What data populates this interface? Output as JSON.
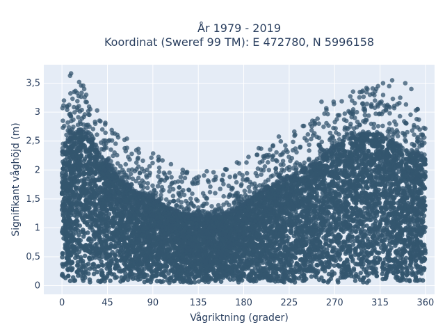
{
  "chart_data": {
    "type": "scatter",
    "title_line1": "År 1979 - 2019",
    "title_line2": "Koordinat (Sweref 99 TM): E 472780, N 5996158",
    "xlabel": "Vågriktning (grader)",
    "ylabel": "Signifikant våghöjd (m)",
    "xlim": [
      -18,
      369
    ],
    "ylim": [
      -0.15,
      3.82
    ],
    "x_ticks": [
      0,
      45,
      90,
      135,
      180,
      225,
      270,
      315,
      360
    ],
    "x_tick_labels": [
      "0",
      "45",
      "90",
      "135",
      "180",
      "225",
      "270",
      "315",
      "360"
    ],
    "y_ticks": [
      0,
      0.5,
      1,
      1.5,
      2,
      2.5,
      3,
      3.5
    ],
    "y_tick_labels": [
      "0",
      "0,5",
      "1",
      "1,5",
      "2",
      "2,5",
      "3",
      "3,5"
    ],
    "grid": true,
    "legend": "none",
    "marker_color": "#34566f",
    "background_color": "#e5ecf6",
    "envelope": {
      "x": [
        0,
        10,
        20,
        30,
        40,
        45,
        60,
        75,
        90,
        105,
        120,
        135,
        150,
        165,
        180,
        195,
        210,
        225,
        240,
        255,
        270,
        285,
        300,
        315,
        330,
        345,
        360
      ],
      "dense_max": [
        2.3,
        2.6,
        2.7,
        2.5,
        2.2,
        2.1,
        1.8,
        1.6,
        1.5,
        1.35,
        1.25,
        1.2,
        1.2,
        1.25,
        1.4,
        1.6,
        1.75,
        1.85,
        2.0,
        2.2,
        2.4,
        2.55,
        2.65,
        2.6,
        2.45,
        2.3,
        2.2
      ],
      "min": [
        0.05,
        0.05,
        0.05,
        0.05,
        0.05,
        0.05,
        0.05,
        0.05,
        0.05,
        0.05,
        0.05,
        0.05,
        0.05,
        0.05,
        0.05,
        0.05,
        0.05,
        0.05,
        0.05,
        0.05,
        0.05,
        0.05,
        0.05,
        0.05,
        0.05,
        0.05,
        0.05
      ]
    },
    "outliers": [
      [
        9,
        3.67
      ],
      [
        8,
        3.63
      ],
      [
        17,
        3.52
      ],
      [
        19,
        3.46
      ],
      [
        22,
        3.4
      ],
      [
        24,
        3.3
      ],
      [
        12,
        3.35
      ],
      [
        2,
        3.2
      ],
      [
        5,
        3.1
      ],
      [
        28,
        3.05
      ],
      [
        33,
        2.8
      ],
      [
        40,
        2.7
      ],
      [
        46,
        2.5
      ],
      [
        52,
        2.3
      ],
      [
        60,
        2.0
      ],
      [
        70,
        1.85
      ],
      [
        85,
        1.77
      ],
      [
        95,
        1.72
      ],
      [
        110,
        1.55
      ],
      [
        120,
        1.65
      ],
      [
        128,
        1.42
      ],
      [
        140,
        1.38
      ],
      [
        160,
        1.4
      ],
      [
        175,
        1.55
      ],
      [
        185,
        1.7
      ],
      [
        196,
        2.13
      ],
      [
        205,
        2.0
      ],
      [
        218,
        2.27
      ],
      [
        225,
        2.05
      ],
      [
        236,
        2.4
      ],
      [
        248,
        2.85
      ],
      [
        257,
        3.18
      ],
      [
        269,
        3.18
      ],
      [
        280,
        2.7
      ],
      [
        292,
        3.0
      ],
      [
        298,
        3.15
      ],
      [
        305,
        3.3
      ],
      [
        313,
        3.45
      ],
      [
        318,
        3.5
      ],
      [
        324,
        3.45
      ],
      [
        327,
        3.55
      ],
      [
        340,
        3.5
      ],
      [
        346,
        3.4
      ],
      [
        352,
        3.05
      ],
      [
        357,
        2.6
      ],
      [
        300,
        2.95
      ],
      [
        310,
        3.2
      ],
      [
        335,
        3.25
      ],
      [
        300,
        3.05
      ],
      [
        290,
        2.9
      ]
    ]
  }
}
